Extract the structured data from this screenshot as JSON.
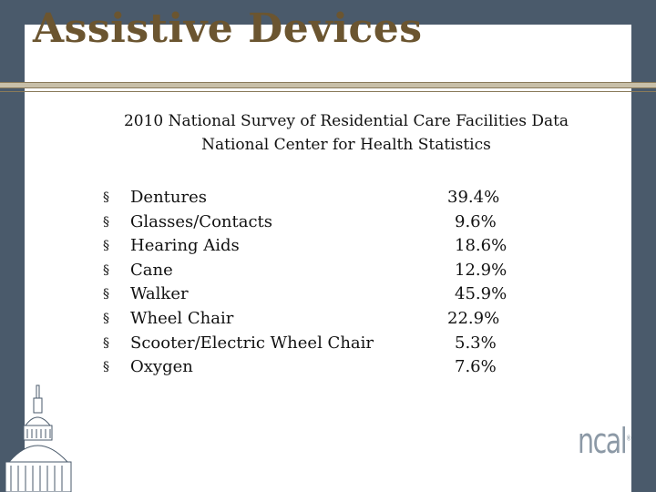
{
  "slide": {
    "title": "Assistive Devices",
    "subtitle_line1": "2010  National Survey of Residential Care Facilities Data",
    "subtitle_line2": "National Center for Health Statistics",
    "bullet_glyph": "§",
    "items": [
      {
        "label": "Dentures",
        "value": "39.4%",
        "offset": 0
      },
      {
        "label": "Glasses/Contacts",
        "value": "9.6%",
        "offset": 8
      },
      {
        "label": "Hearing Aids",
        "value": "18.6%",
        "offset": 8
      },
      {
        "label": "Cane",
        "value": "12.9%",
        "offset": 8
      },
      {
        "label": "Walker",
        "value": "45.9%",
        "offset": 8
      },
      {
        "label": "Wheel Chair",
        "value": "22.9%",
        "offset": 0
      },
      {
        "label": "Scooter/Electric Wheel Chair",
        "value": "5.3%",
        "offset": 8
      },
      {
        "label": "Oxygen",
        "value": "7.6%",
        "offset": 8
      }
    ],
    "logo_text": "ncal",
    "logo_mark": "®"
  }
}
